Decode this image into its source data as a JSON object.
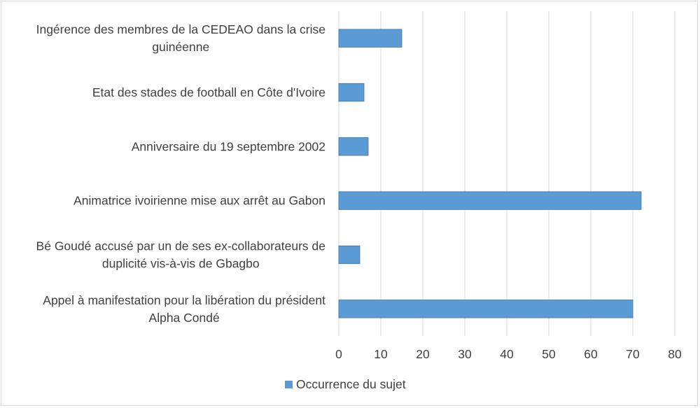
{
  "chart_data": {
    "type": "bar",
    "orientation": "horizontal",
    "title": "",
    "xlabel": "",
    "ylabel": "",
    "xlim": [
      0,
      80
    ],
    "ticks": [
      0,
      10,
      20,
      30,
      40,
      50,
      60,
      70,
      80
    ],
    "tick_labels": [
      "0",
      "10",
      "20",
      "30",
      "40",
      "50",
      "60",
      "70",
      "80"
    ],
    "grid": true,
    "legend_position": "bottom",
    "bar_color": "#5b9bd5",
    "categories": [
      [
        "Ingérence des membres de la CEDEAO dans la crise",
        "guinéenne"
      ],
      [
        "Etat des stades de football en Côte d'Ivoire"
      ],
      [
        "Anniversaire du 19 septembre 2002"
      ],
      [
        "Animatrice ivoirienne mise aux arrêt au Gabon"
      ],
      [
        "Bé Goudé accusé par un de ses ex-collaborateurs de",
        "duplicité vis-à-vis de Gbagbo"
      ],
      [
        "Appel à manifestation pour la libération du président",
        "Alpha Condé"
      ]
    ],
    "series": [
      {
        "name": "Occurrence du sujet",
        "values": [
          15,
          6,
          7,
          72,
          5,
          70
        ]
      }
    ]
  }
}
